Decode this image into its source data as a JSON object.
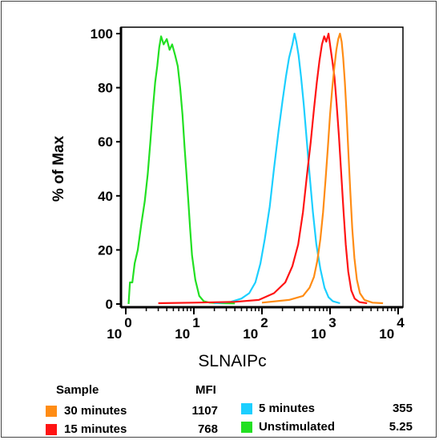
{
  "chart_data": {
    "type": "area",
    "xlabel": "SLNAIPc",
    "ylabel": "% of Max",
    "x_scale": "log",
    "xlim": [
      1,
      10000
    ],
    "ylim": [
      0,
      100
    ],
    "y_ticks": [
      0,
      20,
      40,
      60,
      80,
      100
    ],
    "x_ticks": [
      {
        "value": 1,
        "base": "10",
        "exp": "0"
      },
      {
        "value": 10,
        "base": "10",
        "exp": "1"
      },
      {
        "value": 100,
        "base": "10",
        "exp": "2"
      },
      {
        "value": 1000,
        "base": "10",
        "exp": "3"
      },
      {
        "value": 10000,
        "base": "10",
        "exp": "4"
      }
    ],
    "series": [
      {
        "name": "Unstimulated",
        "color": "#22e022",
        "points": [
          [
            1.1,
            0
          ],
          [
            1.15,
            8
          ],
          [
            1.25,
            8
          ],
          [
            1.35,
            15
          ],
          [
            1.5,
            20
          ],
          [
            1.7,
            30
          ],
          [
            1.9,
            38
          ],
          [
            2.1,
            48
          ],
          [
            2.3,
            60
          ],
          [
            2.5,
            72
          ],
          [
            2.7,
            82
          ],
          [
            2.9,
            88
          ],
          [
            3.1,
            95
          ],
          [
            3.3,
            99
          ],
          [
            3.6,
            96
          ],
          [
            4.0,
            98
          ],
          [
            4.4,
            94
          ],
          [
            4.8,
            96
          ],
          [
            5.3,
            92
          ],
          [
            5.8,
            88
          ],
          [
            6.3,
            80
          ],
          [
            6.8,
            70
          ],
          [
            7.3,
            58
          ],
          [
            7.8,
            48
          ],
          [
            8.3,
            38
          ],
          [
            8.8,
            28
          ],
          [
            9.4,
            18
          ],
          [
            10.5,
            9
          ],
          [
            12,
            3
          ],
          [
            14,
            1
          ],
          [
            17,
            0.5
          ],
          [
            25,
            0.3
          ],
          [
            40,
            0.2
          ]
        ]
      },
      {
        "name": "5 minutes",
        "color": "#1ccfff",
        "points": [
          [
            20,
            0.3
          ],
          [
            35,
            0.8
          ],
          [
            50,
            2
          ],
          [
            65,
            4
          ],
          [
            80,
            8
          ],
          [
            95,
            15
          ],
          [
            110,
            24
          ],
          [
            130,
            36
          ],
          [
            150,
            50
          ],
          [
            175,
            64
          ],
          [
            200,
            75
          ],
          [
            225,
            84
          ],
          [
            250,
            91
          ],
          [
            280,
            96
          ],
          [
            300,
            100
          ],
          [
            320,
            97
          ],
          [
            345,
            92
          ],
          [
            375,
            84
          ],
          [
            410,
            74
          ],
          [
            450,
            62
          ],
          [
            500,
            48
          ],
          [
            560,
            34
          ],
          [
            630,
            22
          ],
          [
            720,
            13
          ],
          [
            830,
            6
          ],
          [
            950,
            2.5
          ],
          [
            1100,
            1
          ],
          [
            1400,
            0.3
          ]
        ]
      },
      {
        "name": "15 minutes",
        "color": "#ff1414",
        "points": [
          [
            3,
            0.3
          ],
          [
            10,
            0.5
          ],
          [
            40,
            0.8
          ],
          [
            90,
            1.5
          ],
          [
            150,
            4
          ],
          [
            220,
            8
          ],
          [
            280,
            14
          ],
          [
            340,
            22
          ],
          [
            400,
            34
          ],
          [
            460,
            48
          ],
          [
            520,
            60
          ],
          [
            580,
            72
          ],
          [
            640,
            82
          ],
          [
            700,
            90
          ],
          [
            760,
            96
          ],
          [
            820,
            99
          ],
          [
            880,
            97
          ],
          [
            950,
            100
          ],
          [
            1010,
            95
          ],
          [
            1080,
            90
          ],
          [
            1160,
            84
          ],
          [
            1250,
            74
          ],
          [
            1350,
            62
          ],
          [
            1460,
            48
          ],
          [
            1580,
            34
          ],
          [
            1700,
            22
          ],
          [
            1850,
            12
          ],
          [
            2050,
            5
          ],
          [
            2300,
            2
          ],
          [
            2700,
            0.7
          ],
          [
            3500,
            0.3
          ]
        ]
      },
      {
        "name": "30 minutes",
        "color": "#ff8c14",
        "points": [
          [
            100,
            0.5
          ],
          [
            250,
            1.5
          ],
          [
            400,
            3
          ],
          [
            500,
            6
          ],
          [
            580,
            10
          ],
          [
            650,
            16
          ],
          [
            720,
            24
          ],
          [
            790,
            34
          ],
          [
            860,
            46
          ],
          [
            930,
            58
          ],
          [
            1000,
            70
          ],
          [
            1080,
            80
          ],
          [
            1160,
            88
          ],
          [
            1240,
            94
          ],
          [
            1320,
            98
          ],
          [
            1400,
            100
          ],
          [
            1480,
            97
          ],
          [
            1560,
            91
          ],
          [
            1650,
            82
          ],
          [
            1750,
            70
          ],
          [
            1860,
            56
          ],
          [
            1980,
            42
          ],
          [
            2120,
            28
          ],
          [
            2280,
            17
          ],
          [
            2480,
            9
          ],
          [
            2750,
            4
          ],
          [
            3200,
            1.5
          ],
          [
            4200,
            0.5
          ],
          [
            6000,
            0.3
          ]
        ]
      }
    ]
  },
  "legend": {
    "sample_header": "Sample",
    "mfi_header": "MFI",
    "items": [
      {
        "label": "30 minutes",
        "mfi": "1107",
        "color": "#ff8c14"
      },
      {
        "label": "15 minutes",
        "mfi": "768",
        "color": "#ff1414"
      },
      {
        "label": "5 minutes",
        "mfi": "355",
        "color": "#1ccfff"
      },
      {
        "label": "Unstimulated",
        "mfi": "5.25",
        "color": "#22e022"
      }
    ]
  }
}
